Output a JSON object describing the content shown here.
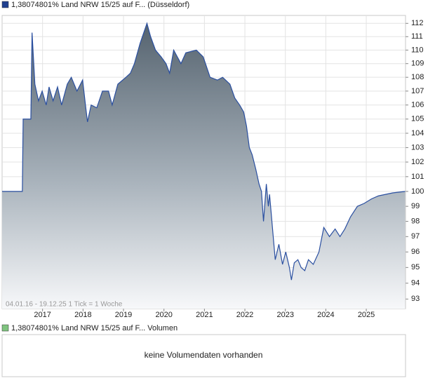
{
  "chart_data": {
    "type": "area",
    "legend": "1,38074801% Land NRW 15/25 auf F... (Düsseldorf)",
    "info": "04.01.16 - 19.12.25   1 Tick = 1 Woche",
    "color": "#2a4fa0",
    "legend_color": "#1f3f8f",
    "log": true,
    "grid": true,
    "x": [
      2016.0,
      2016.5,
      2016.52,
      2016.71,
      2016.74,
      2016.81,
      2016.9,
      2016.99,
      2017.09,
      2017.16,
      2017.26,
      2017.37,
      2017.47,
      2017.61,
      2017.71,
      2017.85,
      2017.99,
      2018.06,
      2018.11,
      2018.2,
      2018.34,
      2018.48,
      2018.63,
      2018.72,
      2018.86,
      2019.06,
      2019.17,
      2019.27,
      2019.41,
      2019.58,
      2019.67,
      2019.79,
      2019.93,
      2020.05,
      2020.14,
      2020.24,
      2020.42,
      2020.54,
      2020.8,
      2020.97,
      2021.14,
      2021.32,
      2021.45,
      2021.63,
      2021.75,
      2021.87,
      2021.97,
      2022.04,
      2022.11,
      2022.18,
      2022.27,
      2022.35,
      2022.41,
      2022.46,
      2022.53,
      2022.58,
      2022.61,
      2022.7,
      2022.75,
      2022.84,
      2022.93,
      2023.01,
      2023.1,
      2023.15,
      2023.22,
      2023.31,
      2023.39,
      2023.48,
      2023.57,
      2023.69,
      2023.83,
      2023.95,
      2024.09,
      2024.23,
      2024.35,
      2024.47,
      2024.61,
      2024.78,
      2024.95,
      2025.13,
      2025.3,
      2025.65,
      2025.96
    ],
    "values": [
      100,
      100,
      105,
      105,
      111.3,
      107.5,
      106.3,
      107,
      106,
      107.3,
      106.3,
      107.3,
      106,
      107.5,
      108,
      107,
      107.8,
      106,
      104.8,
      106,
      105.8,
      107,
      107,
      106,
      107.5,
      108,
      108.3,
      109,
      110.5,
      112,
      111,
      110,
      109.5,
      109,
      108.3,
      110,
      109,
      109.8,
      110,
      109.5,
      108,
      107.8,
      108,
      107.5,
      106.5,
      106,
      105.5,
      104.5,
      103,
      102.5,
      101.5,
      100.5,
      100,
      98,
      100.5,
      99,
      99.8,
      97,
      95.5,
      96.5,
      95.2,
      96,
      95,
      94.2,
      95.3,
      95.5,
      95,
      94.8,
      95.5,
      95.2,
      96,
      97.6,
      97,
      97.5,
      97,
      97.5,
      98.3,
      99,
      99.2,
      99.5,
      99.7,
      99.9,
      100
    ],
    "xlim": [
      2016.0,
      2025.97
    ],
    "xticks": [
      2017,
      2018,
      2019,
      2020,
      2021,
      2022,
      2023,
      2024,
      2025
    ],
    "ylim": [
      92.4,
      112.6
    ],
    "yticks": [
      93,
      94,
      95,
      96,
      97,
      98,
      99,
      100,
      101,
      102,
      103,
      104,
      105,
      106,
      107,
      108,
      109,
      110,
      111,
      112
    ],
    "volume_legend": "1,38074801% Land NRW 15/25 auf F... Volumen",
    "volume_color": "#7fc47f",
    "volume_message": "keine Volumendaten vorhanden"
  }
}
